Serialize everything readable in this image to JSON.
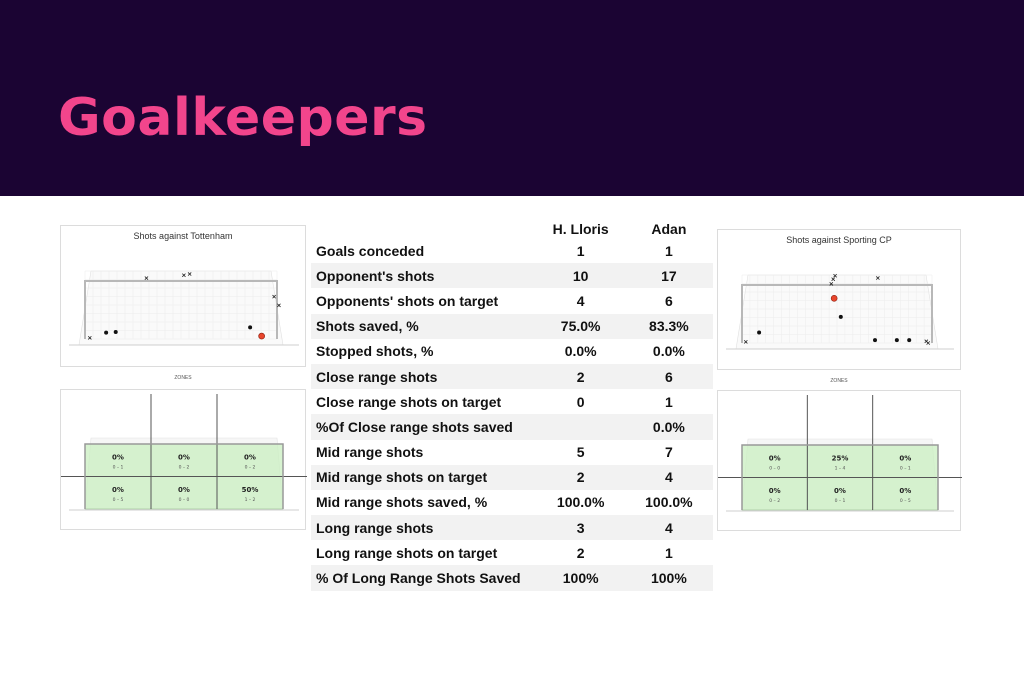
{
  "page": {
    "title": "Goalkeepers"
  },
  "colors": {
    "banner": "#1b0433",
    "title": "#f2458c",
    "goal_shot": "#e8452c",
    "zone_fill": "#c9efc0"
  },
  "chart_data": [
    {
      "type": "scatter",
      "title": "Shots against Tottenham",
      "saves": [
        [
          -0.78,
          0.11
        ],
        [
          -0.68,
          0.12
        ],
        [
          0.72,
          0.2
        ]
      ],
      "goals": [
        [
          0.84,
          0.05
        ]
      ],
      "misses": [
        [
          -0.36,
          1.05
        ],
        [
          0.03,
          1.1
        ],
        [
          0.09,
          1.12
        ],
        [
          0.97,
          0.73
        ],
        [
          1.02,
          0.58
        ],
        [
          -0.95,
          0.02
        ]
      ]
    },
    {
      "type": "heatmap",
      "title": "ZONES",
      "rows": 2,
      "cols": 3,
      "cells": [
        {
          "pct": "0%",
          "ratio": "0 – 1"
        },
        {
          "pct": "0%",
          "ratio": "0 – 2"
        },
        {
          "pct": "0%",
          "ratio": "0 – 2"
        },
        {
          "pct": "0%",
          "ratio": "0 – 5"
        },
        {
          "pct": "0%",
          "ratio": "0 – 0"
        },
        {
          "pct": "50%",
          "ratio": "1 – 2"
        }
      ]
    },
    {
      "type": "table",
      "columns": [
        "",
        "H. Lloris",
        "Adan"
      ],
      "rows": [
        [
          "Goals conceded",
          "1",
          "1"
        ],
        [
          "Opponent's shots",
          "10",
          "17"
        ],
        [
          "Opponents' shots  on target",
          "4",
          "6"
        ],
        [
          "Shots saved, %",
          "75.0%",
          "83.3%"
        ],
        [
          "Stopped shots, %",
          "0.0%",
          "0.0%"
        ],
        [
          "Close range shots",
          "2",
          "6"
        ],
        [
          "Close range shots on target",
          "0",
          "1"
        ],
        [
          "%Of Close range shots saved",
          "",
          "0.0%"
        ],
        [
          "Mid range shots",
          "5",
          "7"
        ],
        [
          "Mid range shots on target",
          "2",
          "4"
        ],
        [
          "Mid range shots saved, %",
          "100.0%",
          "100.0%"
        ],
        [
          "Long range shots",
          "3",
          "4"
        ],
        [
          "Long range shots on target",
          "2",
          "1"
        ],
        [
          "% Of Long Range Shots Saved",
          "100%",
          "100%"
        ]
      ]
    },
    {
      "type": "scatter",
      "title": "Shots against Sporting CP",
      "saves": [
        [
          -0.82,
          0.18
        ],
        [
          0.04,
          0.45
        ],
        [
          0.4,
          0.05
        ],
        [
          0.63,
          0.05
        ],
        [
          0.76,
          0.05
        ]
      ],
      "goals": [
        [
          -0.03,
          0.77
        ]
      ],
      "misses": [
        [
          -0.04,
          1.1
        ],
        [
          -0.02,
          1.16
        ],
        [
          -0.06,
          1.02
        ],
        [
          0.43,
          1.12
        ],
        [
          -0.96,
          0.02
        ],
        [
          0.94,
          0.03
        ],
        [
          0.96,
          0.0
        ]
      ]
    },
    {
      "type": "heatmap",
      "title": "ZONES",
      "rows": 2,
      "cols": 3,
      "cells": [
        {
          "pct": "0%",
          "ratio": "0 – 0"
        },
        {
          "pct": "25%",
          "ratio": "1 – 4"
        },
        {
          "pct": "0%",
          "ratio": "0 – 1"
        },
        {
          "pct": "0%",
          "ratio": "0 – 2"
        },
        {
          "pct": "0%",
          "ratio": "0 – 1"
        },
        {
          "pct": "0%",
          "ratio": "0 – 5"
        }
      ]
    }
  ]
}
